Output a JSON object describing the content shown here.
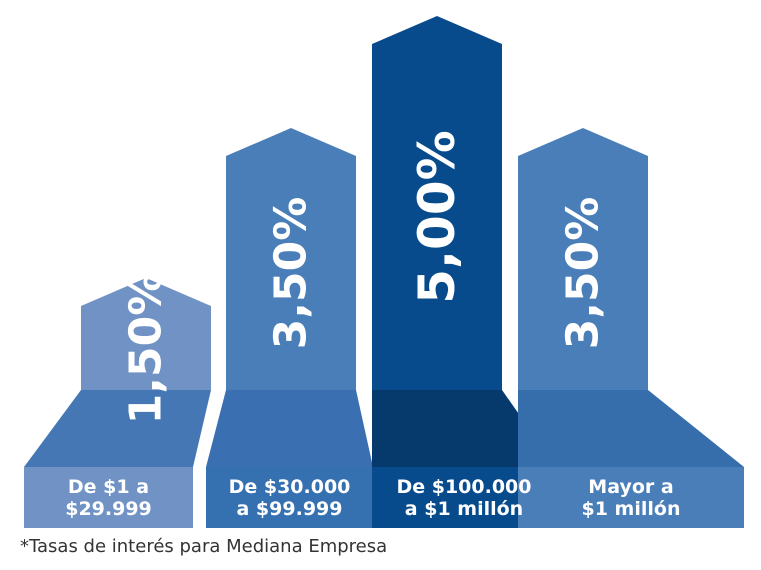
{
  "chart_data": {
    "type": "bar",
    "categories": [
      [
        "De $1 a",
        "$29.999"
      ],
      [
        "De $30.000",
        "a $99.999"
      ],
      [
        "De $100.000",
        "a $1 millón"
      ],
      [
        "Mayor a",
        "$1 millón"
      ]
    ],
    "values": [
      1.5,
      3.5,
      5.0,
      3.5
    ],
    "value_labels": [
      "1,50%",
      "3,50%",
      "5,00%",
      "3,50%"
    ],
    "unit": "%",
    "ylim": [
      0,
      5
    ],
    "colors": {
      "bars": [
        "#7092c4",
        "#4a7eb8",
        "#074b8c",
        "#4a7eb8"
      ],
      "bases": [
        "#4477b3",
        "#3a6fb1",
        "#063a6c",
        "#356eab"
      ],
      "labels": [
        "#7092c4",
        "#3570b0",
        "#074b8c",
        "#4a7eb8"
      ]
    }
  },
  "footnote": "*Tasas de interés para Mediana Empresa"
}
